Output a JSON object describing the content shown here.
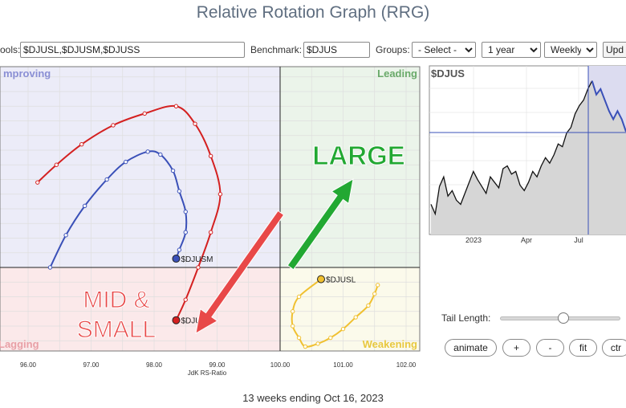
{
  "page": {
    "title": "Relative Rotation Graph (RRG)"
  },
  "toolbar": {
    "symbols_label": "ools:",
    "symbols_value": "$DJUSL,$DJUSM,$DJUSS",
    "benchmark_label": "Benchmark:",
    "benchmark_value": "$DJUS",
    "groups_label": "Groups:",
    "groups_selected": "- Select -",
    "period_selected": "1 year",
    "interval_selected": "Weekly",
    "update_label": "Upd"
  },
  "quadrants": {
    "improving": "mproving",
    "leading": "Leading",
    "lagging": "Lagging",
    "weakening": "Weakening"
  },
  "colors": {
    "improving": "#ececf8",
    "leading": "#ebf4ea",
    "lagging": "#fbe9ea",
    "weakening": "#fbfaeb",
    "improving_text": "#8a8fd4",
    "leading_text": "#6aaa6a",
    "lagging_text": "#e8a0a6",
    "weakening_text": "#e8c840",
    "djusl": "#f0c030",
    "djusm": "#3a50b8",
    "djuss": "#d42020",
    "annot_red": "#e84848",
    "annot_green": "#22a832"
  },
  "chart_data": {
    "type": "scatter",
    "xlabel": "JdK RS-Ratio",
    "x_ticks": [
      "96.00",
      "97.00",
      "98.00",
      "99.00",
      "100.00",
      "101.00",
      "102.00"
    ],
    "center": [
      100,
      100
    ],
    "series": [
      {
        "name": "$DJUSS",
        "color": "#d42020",
        "points": [
          [
            96.15,
            102.9
          ],
          [
            96.45,
            103.5
          ],
          [
            96.85,
            104.2
          ],
          [
            97.35,
            104.85
          ],
          [
            97.85,
            105.25
          ],
          [
            98.35,
            105.5
          ],
          [
            98.65,
            104.9
          ],
          [
            98.9,
            103.8
          ],
          [
            99.05,
            102.5
          ],
          [
            98.9,
            101.2
          ],
          [
            98.7,
            100
          ],
          [
            98.5,
            98.9
          ],
          [
            98.35,
            98.2
          ]
        ]
      },
      {
        "name": "$DJUSM",
        "color": "#3a50b8",
        "points": [
          [
            96.35,
            100
          ],
          [
            96.6,
            101.1
          ],
          [
            96.9,
            102.1
          ],
          [
            97.25,
            103
          ],
          [
            97.55,
            103.6
          ],
          [
            97.9,
            103.95
          ],
          [
            98.1,
            103.85
          ],
          [
            98.3,
            103.3
          ],
          [
            98.4,
            102.6
          ],
          [
            98.5,
            101.9
          ],
          [
            98.5,
            101.2
          ],
          [
            98.4,
            100.6
          ],
          [
            98.35,
            100.3
          ]
        ]
      },
      {
        "name": "$DJUSL",
        "color": "#f0c030",
        "points": [
          [
            101.55,
            99.4
          ],
          [
            101.5,
            99.1
          ],
          [
            101.4,
            98.7
          ],
          [
            101.2,
            98.3
          ],
          [
            101.0,
            97.9
          ],
          [
            100.8,
            97.6
          ],
          [
            100.6,
            97.4
          ],
          [
            100.4,
            97.3
          ],
          [
            100.3,
            97.6
          ],
          [
            100.2,
            98.0
          ],
          [
            100.2,
            98.5
          ],
          [
            100.3,
            99.0
          ],
          [
            100.65,
            99.6
          ]
        ]
      }
    ],
    "annotations": [
      "LARGE",
      "MID &",
      "SMALL"
    ]
  },
  "mini_chart": {
    "symbol": "$DJUS",
    "x_ticks": [
      "2023",
      "Apr",
      "Jul"
    ],
    "values": [
      42,
      35,
      55,
      62,
      48,
      52,
      45,
      42,
      50,
      58,
      66,
      60,
      55,
      50,
      62,
      58,
      54,
      68,
      70,
      64,
      66,
      56,
      52,
      58,
      66,
      62,
      70,
      76,
      72,
      78,
      86,
      84,
      94,
      98,
      108,
      114,
      118,
      126,
      132,
      122,
      126,
      118,
      110,
      104,
      110,
      104,
      95
    ]
  },
  "tail": {
    "label": "Tail Length:",
    "value": 13,
    "max": 25
  },
  "buttons": {
    "animate": "animate",
    "plus": "+",
    "minus": "-",
    "fit": "fit",
    "ctr": "ctr"
  },
  "footer": {
    "text": "13 weeks ending Oct 16, 2023"
  }
}
